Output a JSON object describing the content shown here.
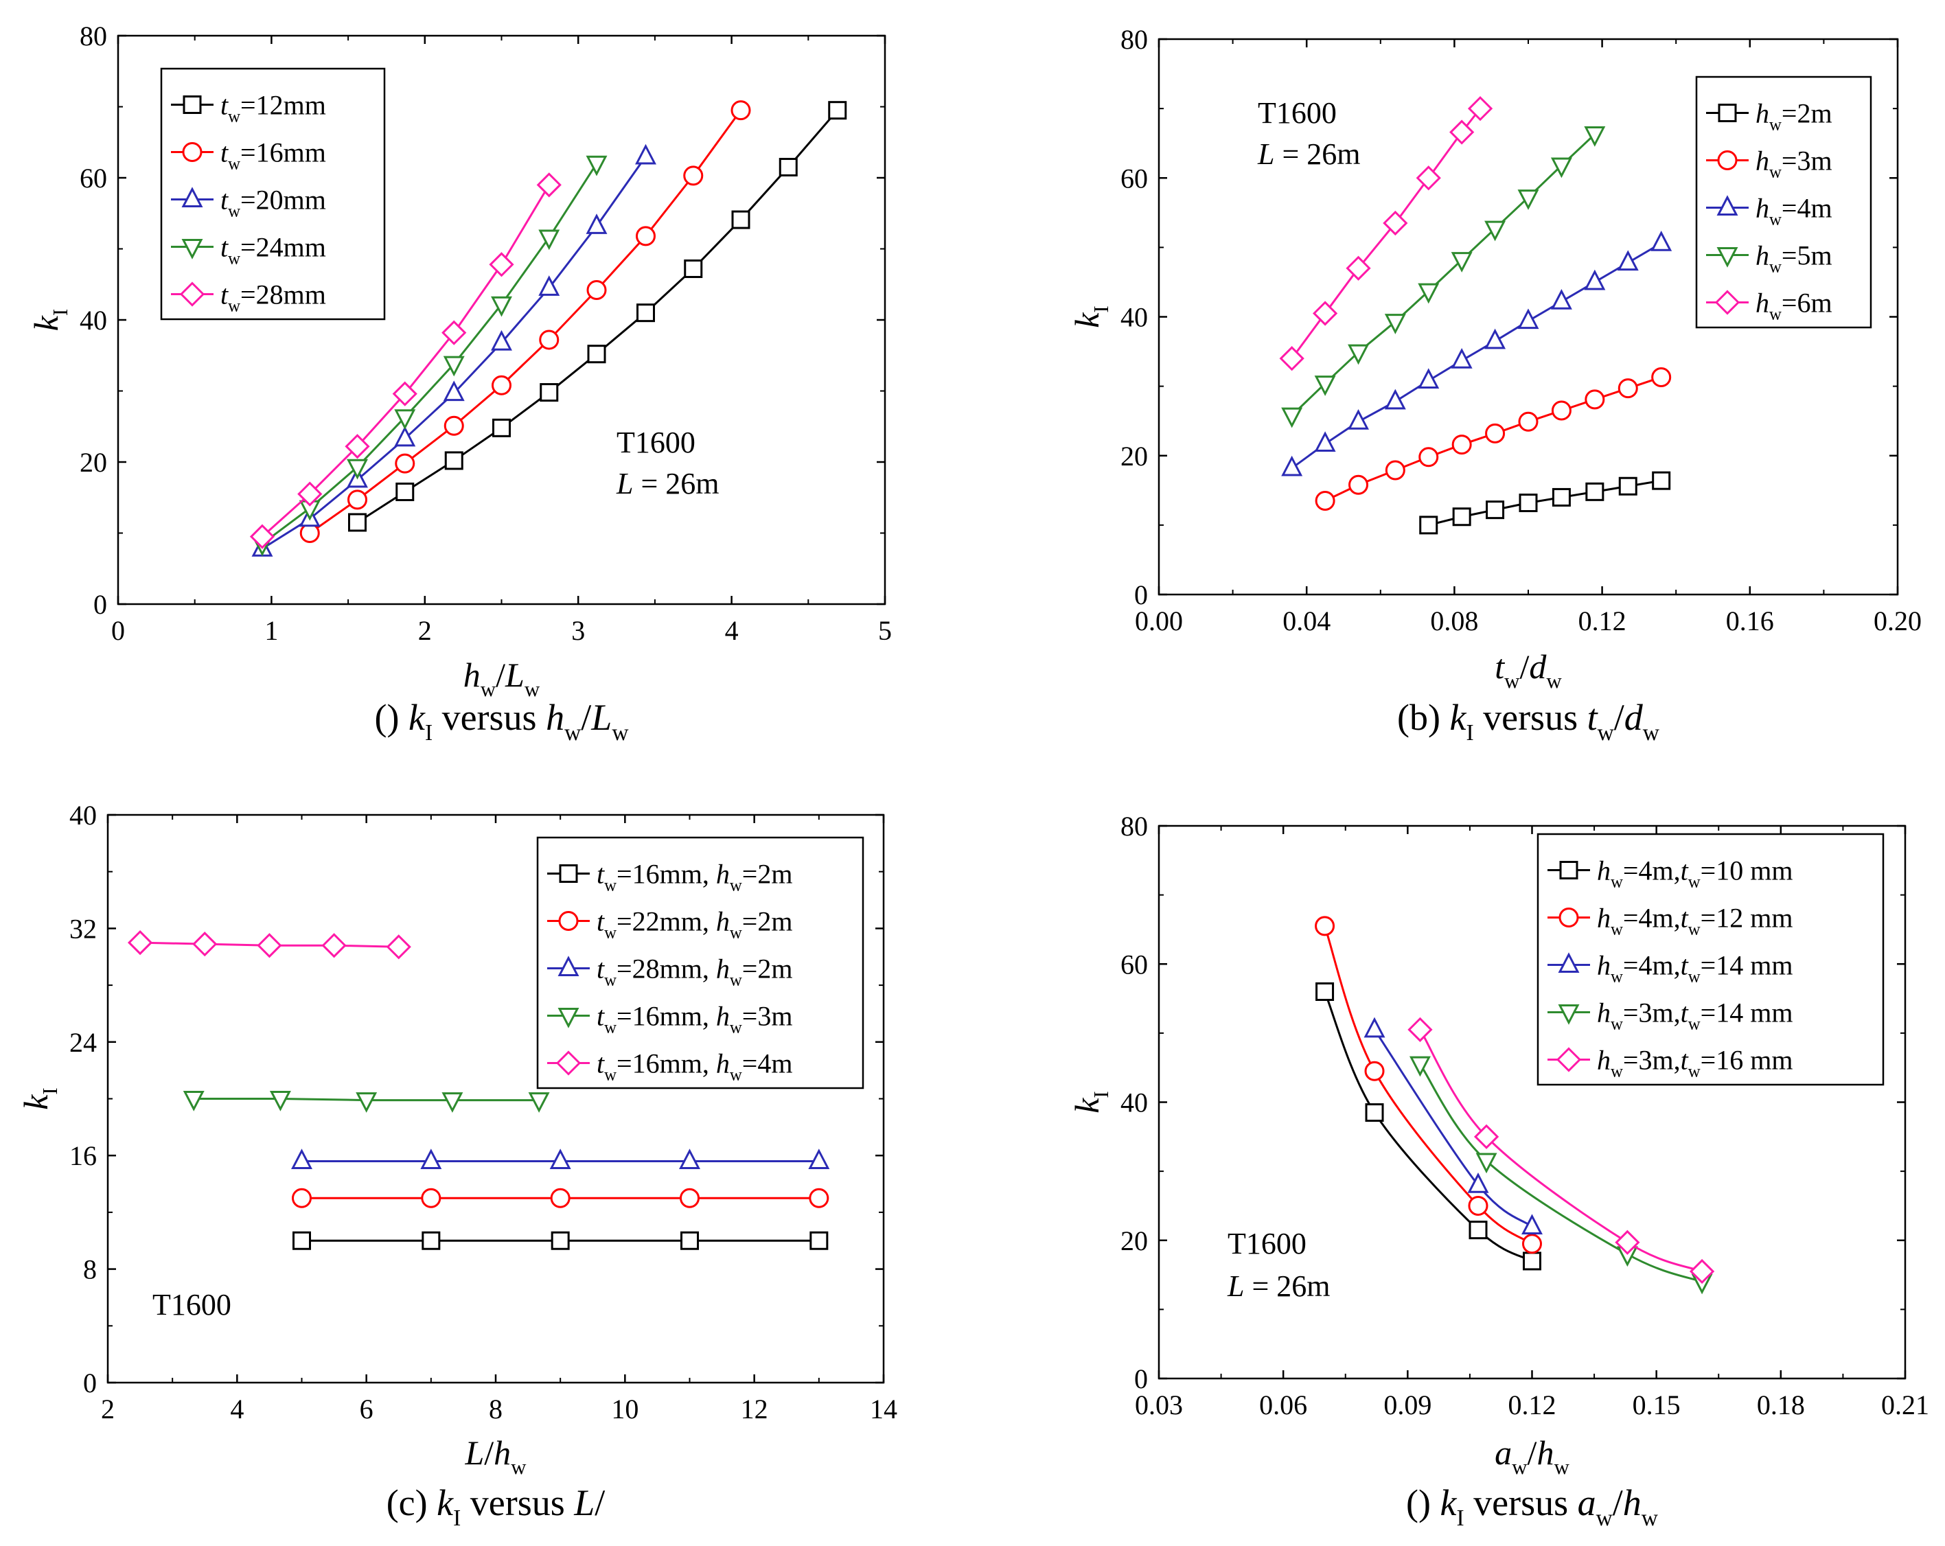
{
  "chart_data": [
    {
      "type": "line",
      "caption": "(a) kI versus hw/Lw",
      "xlabel": "hw/Lw",
      "ylabel": "kI",
      "xlim": [
        0,
        5
      ],
      "ylim": [
        0,
        80
      ],
      "xticks": [
        "0",
        "1",
        "2",
        "3",
        "4",
        "5"
      ],
      "yticks": [
        "0",
        "20",
        "40",
        "60",
        "80"
      ],
      "legend_position": "top-left",
      "annotation": [
        "T1600",
        "L = 26m"
      ],
      "series": [
        {
          "name": "tw=12mm",
          "marker": "square",
          "color": "#000000",
          "x": [
            1.56,
            1.87,
            2.19,
            2.5,
            2.81,
            3.12,
            3.44,
            3.75,
            4.06,
            4.37,
            4.69
          ],
          "y": [
            11.5,
            15.8,
            20.2,
            24.8,
            29.8,
            35.2,
            41.0,
            47.2,
            54.1,
            61.5,
            69.5
          ]
        },
        {
          "name": "tw=16mm",
          "marker": "circle",
          "color": "#ff0000",
          "x": [
            1.25,
            1.56,
            1.87,
            2.19,
            2.5,
            2.81,
            3.12,
            3.44,
            3.75,
            4.06
          ],
          "y": [
            10.0,
            14.7,
            19.8,
            25.1,
            30.8,
            37.2,
            44.2,
            51.8,
            60.3,
            69.5
          ]
        },
        {
          "name": "tw=20mm",
          "marker": "triangle-up",
          "color": "#2b2bb5",
          "x": [
            0.94,
            1.25,
            1.56,
            1.87,
            2.19,
            2.5,
            2.81,
            3.12,
            3.44
          ],
          "y": [
            7.8,
            12.0,
            17.5,
            23.3,
            29.7,
            36.8,
            44.5,
            53.2,
            63.0
          ]
        },
        {
          "name": "tw=24mm",
          "marker": "triangle-down",
          "color": "#2e8b2e",
          "x": [
            0.94,
            1.25,
            1.56,
            1.87,
            2.19,
            2.5,
            2.81,
            3.12
          ],
          "y": [
            8.5,
            13.5,
            19.3,
            26.3,
            33.8,
            42.2,
            51.6,
            62.0
          ]
        },
        {
          "name": "tw=28mm",
          "marker": "diamond",
          "color": "#ff1aa8",
          "x": [
            0.94,
            1.25,
            1.56,
            1.87,
            2.19,
            2.5,
            2.81
          ],
          "y": [
            9.5,
            15.5,
            22.2,
            29.6,
            38.2,
            47.8,
            59.0
          ]
        }
      ]
    },
    {
      "type": "line",
      "caption": "(b) kI versus tw/dw",
      "xlabel": "tw/dw",
      "ylabel": "kI",
      "xlim": [
        0,
        0.2
      ],
      "ylim": [
        0,
        80
      ],
      "xticks": [
        "0.00",
        "0.04",
        "0.08",
        "0.12",
        "0.16",
        "0.20"
      ],
      "yticks": [
        "0",
        "20",
        "40",
        "60",
        "80"
      ],
      "legend_position": "top-right",
      "annotation": [
        "T1600",
        "L = 26m"
      ],
      "series": [
        {
          "name": "hw=2m",
          "marker": "square",
          "color": "#000000",
          "x": [
            0.073,
            0.082,
            0.091,
            0.1,
            0.109,
            0.118,
            0.127,
            0.136
          ],
          "y": [
            10.0,
            11.2,
            12.2,
            13.2,
            14.0,
            14.8,
            15.6,
            16.4
          ]
        },
        {
          "name": "hw=3m",
          "marker": "circle",
          "color": "#ff0000",
          "x": [
            0.045,
            0.054,
            0.064,
            0.073,
            0.082,
            0.091,
            0.1,
            0.109,
            0.118,
            0.127,
            0.136
          ],
          "y": [
            13.5,
            15.8,
            17.9,
            19.8,
            21.6,
            23.2,
            24.9,
            26.5,
            28.1,
            29.7,
            31.3
          ]
        },
        {
          "name": "hw=4m",
          "marker": "triangle-up",
          "color": "#2b2bb5",
          "x": [
            0.036,
            0.045,
            0.054,
            0.064,
            0.073,
            0.082,
            0.091,
            0.1,
            0.109,
            0.118,
            0.127,
            0.136
          ],
          "y": [
            18.2,
            21.7,
            24.9,
            27.8,
            30.8,
            33.7,
            36.5,
            39.4,
            42.2,
            45.0,
            47.8,
            50.6
          ]
        },
        {
          "name": "hw=5m",
          "marker": "triangle-down",
          "color": "#2e8b2e",
          "x": [
            0.036,
            0.045,
            0.054,
            0.064,
            0.073,
            0.082,
            0.091,
            0.1,
            0.109,
            0.118
          ],
          "y": [
            25.8,
            30.4,
            34.9,
            39.3,
            43.7,
            48.2,
            52.7,
            57.2,
            61.8,
            66.3
          ]
        },
        {
          "name": "hw=6m",
          "marker": "diamond",
          "color": "#ff1aa8",
          "x": [
            0.036,
            0.045,
            0.054,
            0.064,
            0.073,
            0.082,
            0.087
          ],
          "y": [
            34.0,
            40.5,
            47.0,
            53.5,
            60.0,
            66.6,
            70.0
          ]
        }
      ]
    },
    {
      "type": "line",
      "caption": "(c) kI versus L/h",
      "xlabel": "L/hw",
      "ylabel": "kI",
      "xlim": [
        2,
        14
      ],
      "ylim": [
        0,
        40
      ],
      "xticks": [
        "2",
        "4",
        "6",
        "8",
        "10",
        "12",
        "14"
      ],
      "yticks": [
        "0",
        "8",
        "16",
        "24",
        "32",
        "40"
      ],
      "legend_position": "top-right",
      "annotation": [
        "T1600"
      ],
      "series": [
        {
          "name": "tw=16mm, hw=2m",
          "marker": "square",
          "color": "#000000",
          "x": [
            5,
            7,
            9,
            11,
            13
          ],
          "y": [
            10.0,
            10.0,
            10.0,
            10.0,
            10.0
          ]
        },
        {
          "name": "tw=22mm, hw=2m",
          "marker": "circle",
          "color": "#ff0000",
          "x": [
            5,
            7,
            9,
            11,
            13
          ],
          "y": [
            13.0,
            13.0,
            13.0,
            13.0,
            13.0
          ]
        },
        {
          "name": "tw=28mm, hw=2m",
          "marker": "triangle-up",
          "color": "#2b2bb5",
          "x": [
            5,
            7,
            9,
            11,
            13
          ],
          "y": [
            15.6,
            15.6,
            15.6,
            15.6,
            15.6
          ]
        },
        {
          "name": "tw=16mm, hw=3m",
          "marker": "triangle-down",
          "color": "#2e8b2e",
          "x": [
            3.33,
            4.67,
            6.0,
            7.33,
            8.67
          ],
          "y": [
            20.0,
            20.0,
            19.9,
            19.9,
            19.9
          ]
        },
        {
          "name": "tw=16mm, hw=4m",
          "marker": "diamond",
          "color": "#ff1aa8",
          "x": [
            2.5,
            3.5,
            4.5,
            5.5,
            6.5
          ],
          "y": [
            31.0,
            30.9,
            30.8,
            30.8,
            30.7
          ]
        }
      ]
    },
    {
      "type": "line",
      "caption": "(d) kI versus aw/hw",
      "xlabel": "aw/hw",
      "ylabel": "kI",
      "xlim": [
        0.03,
        0.21
      ],
      "ylim": [
        0,
        80
      ],
      "xticks": [
        "0.03",
        "0.06",
        "0.09",
        "0.12",
        "0.15",
        "0.18",
        "0.21"
      ],
      "yticks": [
        "0",
        "20",
        "40",
        "60",
        "80"
      ],
      "legend_position": "top-right",
      "annotation": [
        "T1600",
        "L = 26m"
      ],
      "series": [
        {
          "name": "hw=4m,tw=10 mm",
          "marker": "square",
          "color": "#000000",
          "x": [
            0.07,
            0.082,
            0.107,
            0.12
          ],
          "y": [
            56.0,
            38.5,
            21.5,
            17.0
          ]
        },
        {
          "name": "hw=4m,tw=12 mm",
          "marker": "circle",
          "color": "#ff0000",
          "x": [
            0.07,
            0.082,
            0.107,
            0.12
          ],
          "y": [
            65.5,
            44.5,
            25.0,
            19.5
          ]
        },
        {
          "name": "hw=4m,tw=14 mm",
          "marker": "triangle-up",
          "color": "#2b2bb5",
          "x": [
            0.082,
            0.107,
            0.12
          ],
          "y": [
            50.5,
            28.0,
            22.0
          ]
        },
        {
          "name": "hw=3m,tw=14 mm",
          "marker": "triangle-down",
          "color": "#2e8b2e",
          "x": [
            0.093,
            0.109,
            0.143,
            0.161
          ],
          "y": [
            45.5,
            31.5,
            18.0,
            14.0
          ]
        },
        {
          "name": "hw=3m,tw=16 mm",
          "marker": "diamond",
          "color": "#ff1aa8",
          "x": [
            0.093,
            0.109,
            0.143,
            0.161
          ],
          "y": [
            50.5,
            35.0,
            19.7,
            15.5
          ]
        }
      ]
    }
  ]
}
